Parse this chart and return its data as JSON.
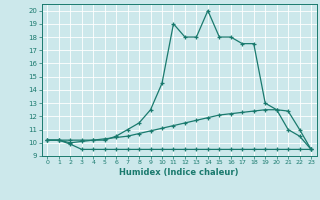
{
  "xlabel": "Humidex (Indice chaleur)",
  "bg_color": "#cce8eb",
  "line_color": "#1a7a6e",
  "grid_color": "#b0d8dc",
  "xlim": [
    -0.5,
    23.5
  ],
  "ylim": [
    9,
    20.5
  ],
  "xticks": [
    0,
    1,
    2,
    3,
    4,
    5,
    6,
    7,
    8,
    9,
    10,
    11,
    12,
    13,
    14,
    15,
    16,
    17,
    18,
    19,
    20,
    21,
    22,
    23
  ],
  "yticks": [
    9,
    10,
    11,
    12,
    13,
    14,
    15,
    16,
    17,
    18,
    19,
    20
  ],
  "series": [
    {
      "x": [
        0,
        1,
        2,
        3,
        4,
        5,
        6,
        7,
        8,
        9,
        10,
        11,
        12,
        13,
        14,
        15,
        16,
        17,
        18,
        19,
        20,
        21,
        22,
        23
      ],
      "y": [
        10.2,
        10.2,
        9.9,
        9.5,
        9.5,
        9.5,
        9.5,
        9.5,
        9.5,
        9.5,
        9.5,
        9.5,
        9.5,
        9.5,
        9.5,
        9.5,
        9.5,
        9.5,
        9.5,
        9.5,
        9.5,
        9.5,
        9.5,
        9.5
      ]
    },
    {
      "x": [
        0,
        1,
        2,
        3,
        4,
        5,
        6,
        7,
        8,
        9,
        10,
        11,
        12,
        13,
        14,
        15,
        16,
        17,
        18,
        19,
        20,
        21,
        22,
        23
      ],
      "y": [
        10.2,
        10.2,
        10.0,
        10.1,
        10.2,
        10.3,
        10.4,
        10.5,
        10.7,
        10.9,
        11.1,
        11.3,
        11.5,
        11.7,
        11.9,
        12.1,
        12.2,
        12.3,
        12.4,
        12.5,
        12.5,
        12.4,
        11.0,
        9.5
      ]
    },
    {
      "x": [
        0,
        1,
        2,
        3,
        4,
        5,
        6,
        7,
        8,
        9,
        10,
        11,
        12,
        13,
        14,
        15,
        16,
        17,
        18,
        19,
        20,
        21,
        22,
        23
      ],
      "y": [
        10.2,
        10.2,
        10.2,
        10.2,
        10.2,
        10.2,
        10.5,
        11.0,
        11.5,
        12.5,
        14.5,
        19.0,
        18.0,
        18.0,
        20.0,
        18.0,
        18.0,
        17.5,
        17.5,
        13.0,
        12.5,
        11.0,
        10.5,
        9.5
      ]
    }
  ]
}
